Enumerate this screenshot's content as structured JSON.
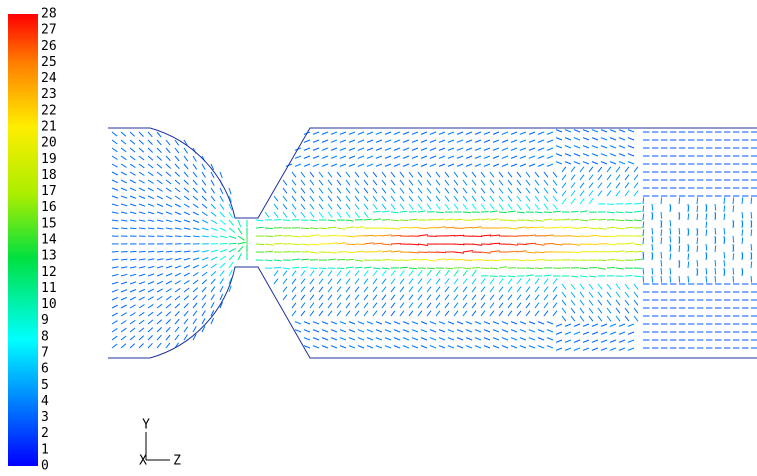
{
  "colorbar": {
    "ticks": [
      0,
      1,
      2,
      3,
      4,
      5,
      6,
      7,
      8,
      9,
      10,
      11,
      12,
      13,
      14,
      15,
      16,
      17,
      18,
      19,
      20,
      21,
      22,
      23,
      24,
      25,
      26,
      27,
      28
    ]
  },
  "triad": {
    "x": "X",
    "y": "Y",
    "z": "Z"
  }
}
